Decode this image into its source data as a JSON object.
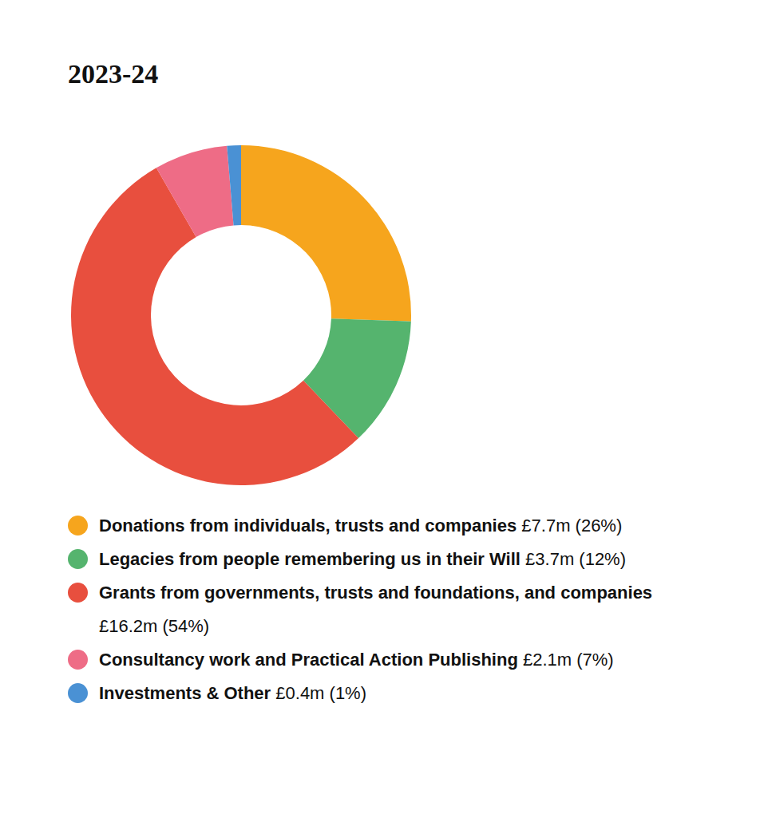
{
  "chart_data": {
    "type": "pie",
    "title": "2023-24",
    "categories": [
      "Donations from individuals, trusts and companies",
      "Legacies from people remembering us in their Will",
      "Grants from governments, trusts and foundations, and companies",
      "Consultancy work and Practical Action Publishing",
      "Investments & Other"
    ],
    "values": [
      7.7,
      3.7,
      16.2,
      2.1,
      0.4
    ],
    "value_labels": [
      "£7.7m (26%)",
      "£3.7m (12%)",
      "£16.2m (54%)",
      "£2.1m (7%)",
      "£0.4m (1%)"
    ],
    "colors": [
      "#f6a51d",
      "#55b46e",
      "#e84f3e",
      "#ee6c86",
      "#4a91d4"
    ],
    "legend": "bottom"
  }
}
